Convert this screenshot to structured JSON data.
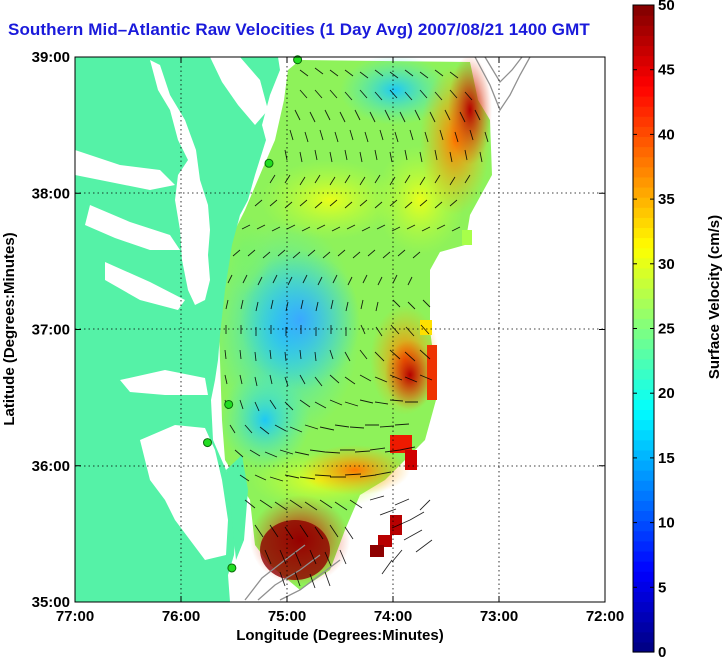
{
  "title": "Southern Mid–Atlantic Raw Velocities (1 Day Avg) 2007/08/21 1400 GMT",
  "map": {
    "xlabel": "Longitude (Degrees:Minutes)",
    "ylabel": "Latitude (Degrees:Minutes)",
    "lon_range": [
      -77,
      -72
    ],
    "lat_range": [
      35,
      39
    ],
    "x_ticks": [
      {
        "lon": -77,
        "label": "77:00"
      },
      {
        "lon": -76,
        "label": "76:00"
      },
      {
        "lon": -75,
        "label": "75:00"
      },
      {
        "lon": -74,
        "label": "74:00"
      },
      {
        "lon": -73,
        "label": "73:00"
      },
      {
        "lon": -72,
        "label": "72:00"
      }
    ],
    "y_ticks": [
      {
        "lat": 35,
        "label": "35:00"
      },
      {
        "lat": 36,
        "label": "36:00"
      },
      {
        "lat": 37,
        "label": "37:00"
      },
      {
        "lat": 38,
        "label": "38:00"
      },
      {
        "lat": 39,
        "label": "39:00"
      }
    ],
    "grid": "dotted",
    "land_color": "#55f2a7",
    "water_color": "#ffffff"
  },
  "colorbar": {
    "label": "Surface Velocity (cm/s)",
    "min": 0,
    "max": 50,
    "ticks": [
      {
        "value": 0,
        "label": "0"
      },
      {
        "value": 5,
        "label": "5"
      },
      {
        "value": 10,
        "label": "10"
      },
      {
        "value": 15,
        "label": "15"
      },
      {
        "value": 20,
        "label": "20"
      },
      {
        "value": 25,
        "label": "25"
      },
      {
        "value": 30,
        "label": "30"
      },
      {
        "value": 35,
        "label": "35"
      },
      {
        "value": 40,
        "label": "40"
      },
      {
        "value": 45,
        "label": "45"
      },
      {
        "value": 50,
        "label": "50"
      }
    ],
    "colormap": "jet"
  },
  "hf_radar_sites": [
    {
      "lon": -74.9,
      "lat": 38.98
    },
    {
      "lon": -75.17,
      "lat": 38.22
    },
    {
      "lon": -75.55,
      "lat": 36.45
    },
    {
      "lon": -75.75,
      "lat": 36.17
    },
    {
      "lon": -75.52,
      "lat": 35.25
    }
  ],
  "velocity_regions": [
    {
      "name": "delaware-bay-offshore",
      "lon": -74.6,
      "lat": 38.45,
      "speed": 23
    },
    {
      "name": "nj-shelf-north",
      "lon": -73.6,
      "lat": 38.7,
      "speed": 40
    },
    {
      "name": "virginia-nearshore",
      "lon": -75.1,
      "lat": 37.0,
      "speed": 12
    },
    {
      "name": "eastern-shelf-break",
      "lon": -73.8,
      "lat": 36.9,
      "speed": 33
    },
    {
      "name": "hatteras-jet",
      "lon": -74.3,
      "lat": 35.9,
      "speed": 40
    },
    {
      "name": "gulf-stream-south",
      "lon": -74.8,
      "lat": 35.4,
      "speed": 47
    }
  ]
}
